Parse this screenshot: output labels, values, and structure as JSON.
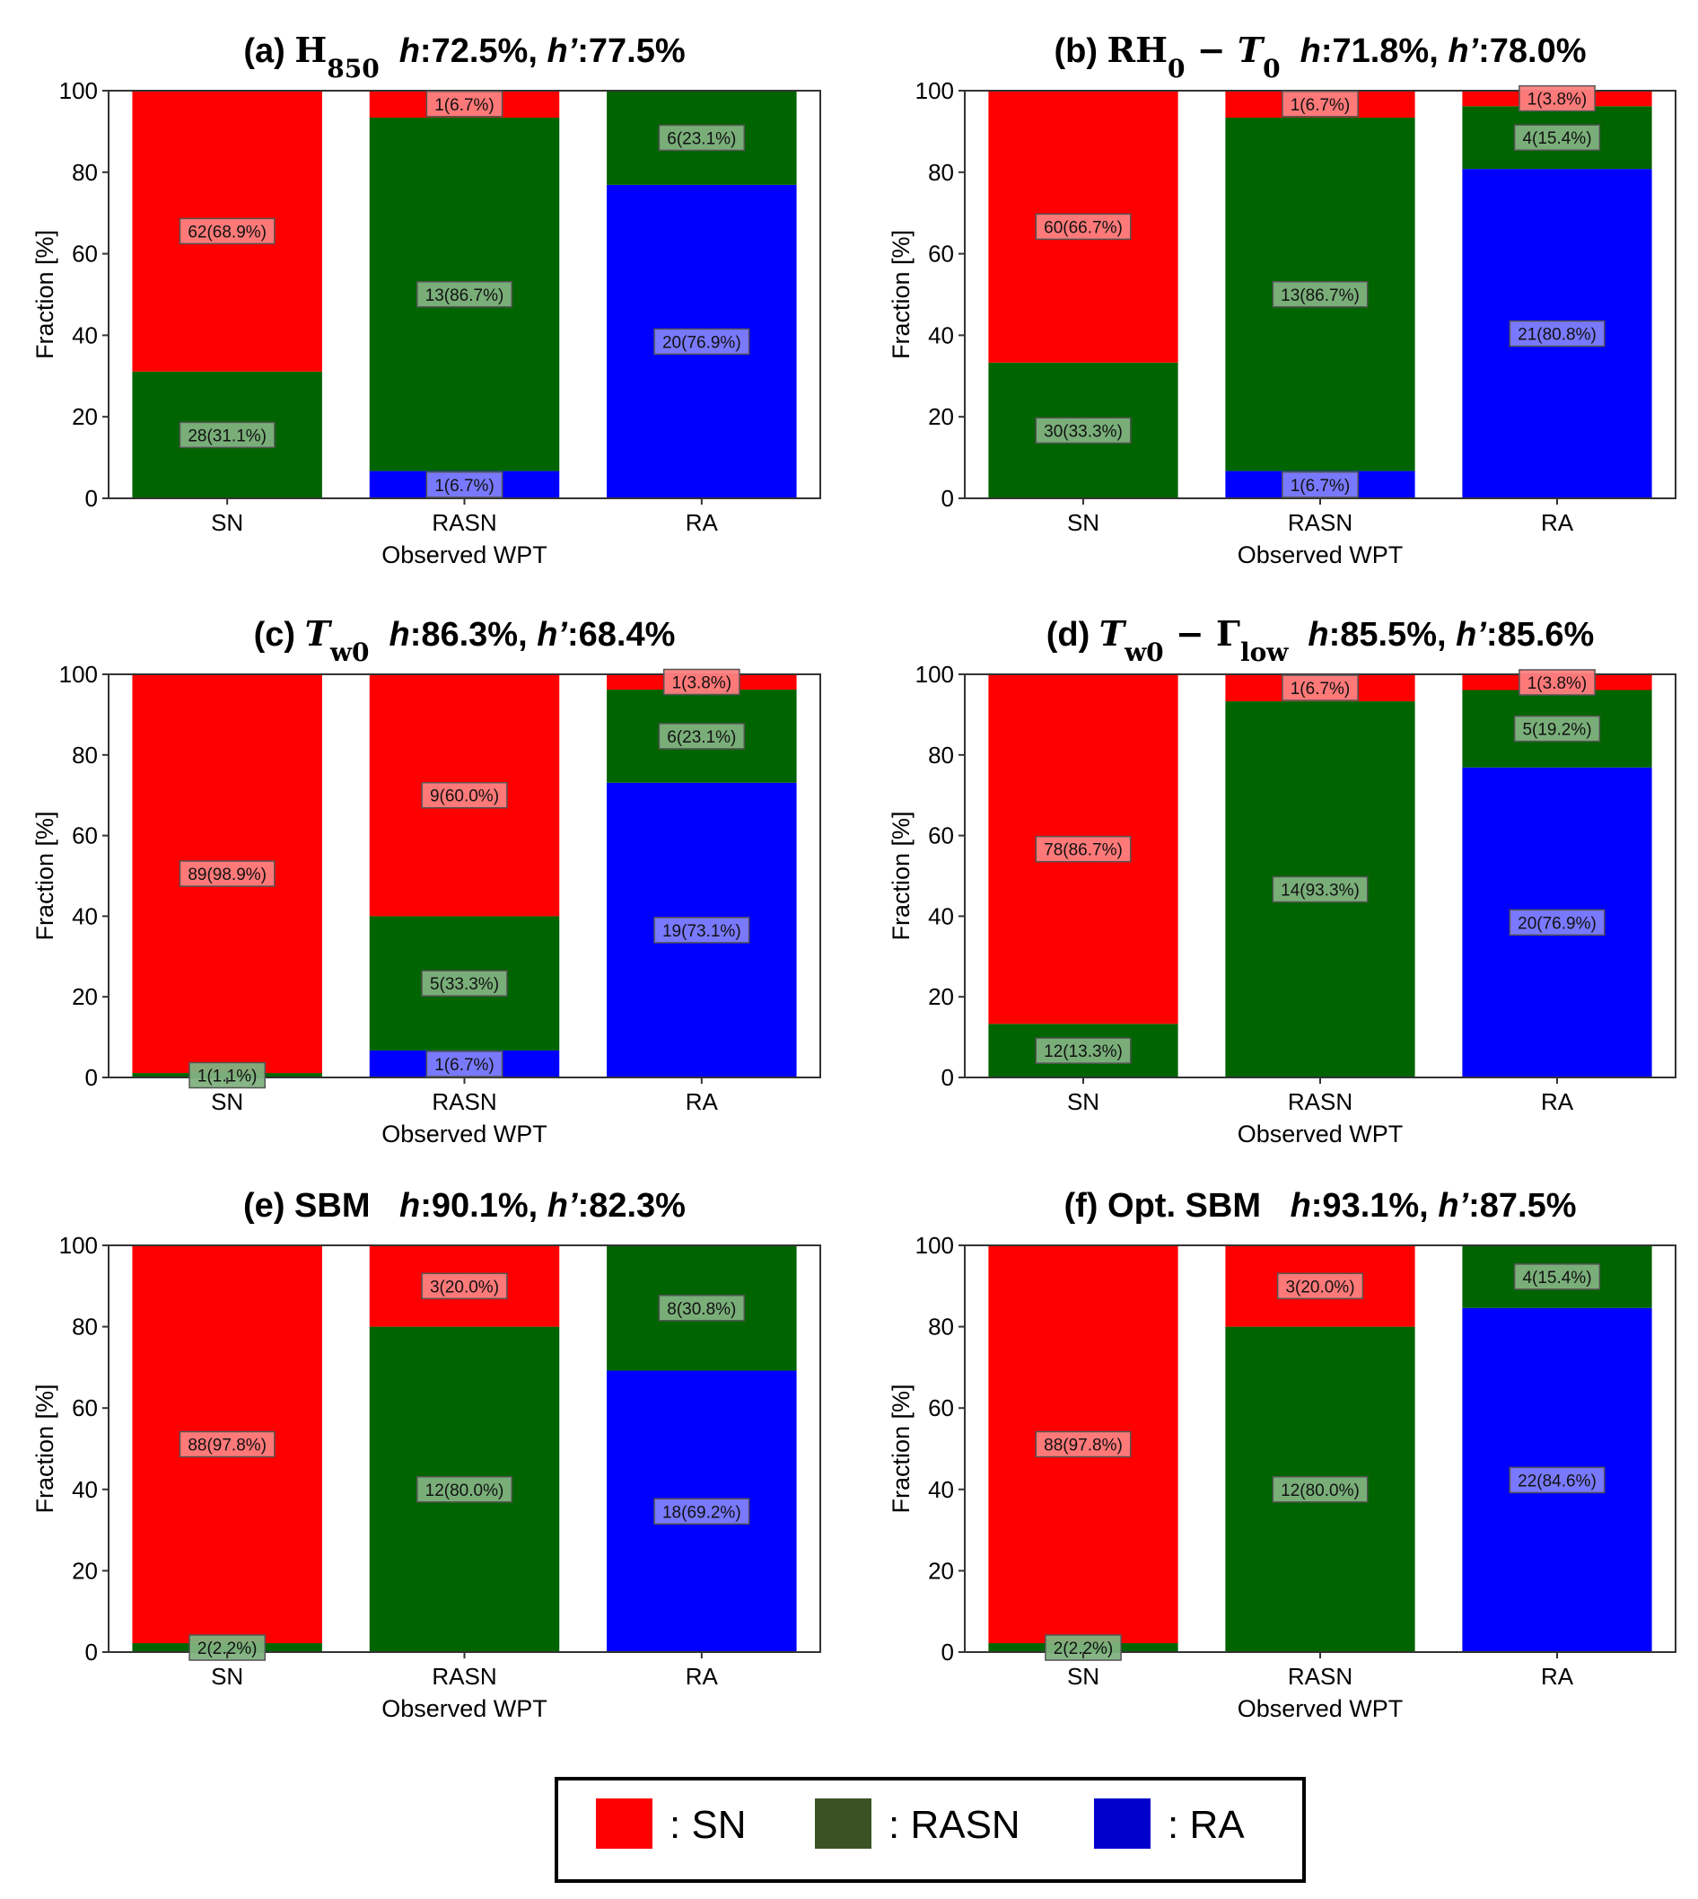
{
  "chart_data": [
    {
      "type": "bar",
      "stacked": true,
      "title": {
        "prefix": "(a)",
        "math": [
          {
            "t": "H",
            "serif": true
          },
          {
            "t": "850",
            "sub": true,
            "serif": true
          }
        ],
        "h": "72.5%",
        "hp": "77.5%"
      },
      "xlabel": "Observed WPT",
      "ylabel": "Fraction [%]",
      "ylim": [
        0,
        100
      ],
      "yticks": [
        0,
        20,
        40,
        60,
        80,
        100
      ],
      "categories": [
        "SN",
        "RASN",
        "RA"
      ],
      "stacks": [
        [
          {
            "cls": "RASN",
            "count": 28,
            "pct": 31.1
          },
          {
            "cls": "SN",
            "count": 62,
            "pct": 68.9
          }
        ],
        [
          {
            "cls": "RA",
            "count": 1,
            "pct": 6.7
          },
          {
            "cls": "RASN",
            "count": 13,
            "pct": 86.7
          },
          {
            "cls": "SN",
            "count": 1,
            "pct": 6.7
          }
        ],
        [
          {
            "cls": "RA",
            "count": 20,
            "pct": 76.9
          },
          {
            "cls": "RASN",
            "count": 6,
            "pct": 23.1
          }
        ]
      ]
    },
    {
      "type": "bar",
      "stacked": true,
      "title": {
        "prefix": "(b)",
        "math": [
          {
            "t": "RH",
            "serif": true
          },
          {
            "t": "0",
            "sub": true,
            "serif": true
          },
          {
            "t": " − ",
            "serif": true
          },
          {
            "t": "T",
            "serif": true,
            "italic": true
          },
          {
            "t": "0",
            "sub": true,
            "serif": true
          }
        ],
        "h": "71.8%",
        "hp": "78.0%"
      },
      "xlabel": "Observed WPT",
      "ylabel": "Fraction [%]",
      "ylim": [
        0,
        100
      ],
      "yticks": [
        0,
        20,
        40,
        60,
        80,
        100
      ],
      "categories": [
        "SN",
        "RASN",
        "RA"
      ],
      "stacks": [
        [
          {
            "cls": "RASN",
            "count": 30,
            "pct": 33.3
          },
          {
            "cls": "SN",
            "count": 60,
            "pct": 66.7
          }
        ],
        [
          {
            "cls": "RA",
            "count": 1,
            "pct": 6.7
          },
          {
            "cls": "RASN",
            "count": 13,
            "pct": 86.7
          },
          {
            "cls": "SN",
            "count": 1,
            "pct": 6.7
          }
        ],
        [
          {
            "cls": "RA",
            "count": 21,
            "pct": 80.8
          },
          {
            "cls": "RASN",
            "count": 4,
            "pct": 15.4
          },
          {
            "cls": "SN",
            "count": 1,
            "pct": 3.8
          }
        ]
      ]
    },
    {
      "type": "bar",
      "stacked": true,
      "title": {
        "prefix": "(c)",
        "math": [
          {
            "t": "T",
            "serif": true,
            "italic": true
          },
          {
            "t": "w0",
            "sub": true,
            "serif": true
          }
        ],
        "h": "86.3%",
        "hp": "68.4%"
      },
      "xlabel": "Observed WPT",
      "ylabel": "Fraction [%]",
      "ylim": [
        0,
        100
      ],
      "yticks": [
        0,
        20,
        40,
        60,
        80,
        100
      ],
      "categories": [
        "SN",
        "RASN",
        "RA"
      ],
      "stacks": [
        [
          {
            "cls": "RASN",
            "count": 1,
            "pct": 1.1
          },
          {
            "cls": "SN",
            "count": 89,
            "pct": 98.9
          }
        ],
        [
          {
            "cls": "RA",
            "count": 1,
            "pct": 6.7
          },
          {
            "cls": "RASN",
            "count": 5,
            "pct": 33.3
          },
          {
            "cls": "SN",
            "count": 9,
            "pct": 60.0
          }
        ],
        [
          {
            "cls": "RA",
            "count": 19,
            "pct": 73.1
          },
          {
            "cls": "RASN",
            "count": 6,
            "pct": 23.1
          },
          {
            "cls": "SN",
            "count": 1,
            "pct": 3.8
          }
        ]
      ]
    },
    {
      "type": "bar",
      "stacked": true,
      "title": {
        "prefix": "(d)",
        "math": [
          {
            "t": "T",
            "serif": true,
            "italic": true
          },
          {
            "t": "w0",
            "sub": true,
            "serif": true
          },
          {
            "t": " − Γ",
            "serif": true
          },
          {
            "t": "low",
            "sub": true,
            "serif": true
          }
        ],
        "h": "85.5%",
        "hp": "85.6%"
      },
      "xlabel": "Observed WPT",
      "ylabel": "Fraction [%]",
      "ylim": [
        0,
        100
      ],
      "yticks": [
        0,
        20,
        40,
        60,
        80,
        100
      ],
      "categories": [
        "SN",
        "RASN",
        "RA"
      ],
      "stacks": [
        [
          {
            "cls": "RASN",
            "count": 12,
            "pct": 13.3
          },
          {
            "cls": "SN",
            "count": 78,
            "pct": 86.7
          }
        ],
        [
          {
            "cls": "RASN",
            "count": 14,
            "pct": 93.3
          },
          {
            "cls": "SN",
            "count": 1,
            "pct": 6.7
          }
        ],
        [
          {
            "cls": "RA",
            "count": 20,
            "pct": 76.9
          },
          {
            "cls": "RASN",
            "count": 5,
            "pct": 19.2
          },
          {
            "cls": "SN",
            "count": 1,
            "pct": 3.8
          }
        ]
      ]
    },
    {
      "type": "bar",
      "stacked": true,
      "title": {
        "prefix": "(e) SBM",
        "math": [],
        "h": "90.1%",
        "hp": "82.3%"
      },
      "xlabel": "Observed WPT",
      "ylabel": "Fraction [%]",
      "ylim": [
        0,
        100
      ],
      "yticks": [
        0,
        20,
        40,
        60,
        80,
        100
      ],
      "categories": [
        "SN",
        "RASN",
        "RA"
      ],
      "stacks": [
        [
          {
            "cls": "RASN",
            "count": 2,
            "pct": 2.2
          },
          {
            "cls": "SN",
            "count": 88,
            "pct": 97.8
          }
        ],
        [
          {
            "cls": "RASN",
            "count": 12,
            "pct": 80.0
          },
          {
            "cls": "SN",
            "count": 3,
            "pct": 20.0
          }
        ],
        [
          {
            "cls": "RA",
            "count": 18,
            "pct": 69.2
          },
          {
            "cls": "RASN",
            "count": 8,
            "pct": 30.8
          }
        ]
      ]
    },
    {
      "type": "bar",
      "stacked": true,
      "title": {
        "prefix": "(f) Opt. SBM",
        "math": [],
        "h": "93.1%",
        "hp": "87.5%"
      },
      "xlabel": "Observed WPT",
      "ylabel": "Fraction [%]",
      "ylim": [
        0,
        100
      ],
      "yticks": [
        0,
        20,
        40,
        60,
        80,
        100
      ],
      "categories": [
        "SN",
        "RASN",
        "RA"
      ],
      "stacks": [
        [
          {
            "cls": "RASN",
            "count": 2,
            "pct": 2.2
          },
          {
            "cls": "SN",
            "count": 88,
            "pct": 97.8
          }
        ],
        [
          {
            "cls": "RASN",
            "count": 12,
            "pct": 80.0
          },
          {
            "cls": "SN",
            "count": 3,
            "pct": 20.0
          }
        ],
        [
          {
            "cls": "RA",
            "count": 22,
            "pct": 84.6
          },
          {
            "cls": "RASN",
            "count": 4,
            "pct": 15.4
          }
        ]
      ]
    }
  ],
  "colors": {
    "SN": "#ff0000",
    "RASN": "#006400",
    "RA": "#0000ff"
  },
  "label_colors": {
    "SN": "#ff8080",
    "RASN": "#80b280",
    "RA": "#8080ff"
  },
  "legend": {
    "items": [
      {
        "cls": "SN",
        "label": ": SN",
        "color": "#ff0000"
      },
      {
        "cls": "RASN",
        "label": ": RASN",
        "color": "#3b5323"
      },
      {
        "cls": "RA",
        "label": ": RA",
        "color": "#0000cc"
      }
    ]
  }
}
